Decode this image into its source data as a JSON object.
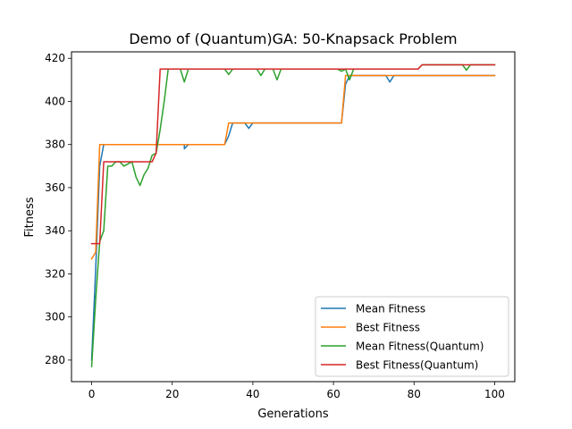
{
  "chart_data": {
    "type": "line",
    "title": "Demo of (Quantum)GA: 50-Knapsack Problem",
    "xlabel": "Generations",
    "ylabel": "Fitness",
    "xlim": [
      -5,
      105
    ],
    "ylim": [
      270,
      423
    ],
    "xticks": [
      0,
      20,
      40,
      60,
      80,
      100
    ],
    "yticks": [
      280,
      300,
      320,
      340,
      360,
      380,
      400,
      420
    ],
    "grid": false,
    "legend_position": "lower-right",
    "series": [
      {
        "name": "Mean Fitness",
        "color": "#1f77b4",
        "points": [
          [
            0,
            280
          ],
          [
            1,
            322
          ],
          [
            2,
            370
          ],
          [
            3,
            380
          ],
          [
            23,
            380
          ],
          [
            23,
            378
          ],
          [
            24,
            380
          ],
          [
            33,
            380
          ],
          [
            34,
            384
          ],
          [
            35,
            390
          ],
          [
            38,
            390
          ],
          [
            39,
            387.5
          ],
          [
            40,
            390
          ],
          [
            62,
            390
          ],
          [
            63,
            408
          ],
          [
            64,
            412
          ],
          [
            73,
            412
          ],
          [
            74,
            409
          ],
          [
            75,
            412
          ],
          [
            100,
            412
          ]
        ]
      },
      {
        "name": "Best Fitness",
        "color": "#ff7f0e",
        "points": [
          [
            0,
            327
          ],
          [
            1,
            330
          ],
          [
            2,
            380
          ],
          [
            33,
            380
          ],
          [
            34,
            390
          ],
          [
            62,
            390
          ],
          [
            63,
            412
          ],
          [
            100,
            412
          ]
        ]
      },
      {
        "name": "Mean Fitness(Quantum)",
        "color": "#2ca02c",
        "points": [
          [
            0,
            277
          ],
          [
            1,
            308
          ],
          [
            2,
            335
          ],
          [
            3,
            340
          ],
          [
            4,
            370
          ],
          [
            5,
            370
          ],
          [
            6,
            372
          ],
          [
            7,
            372
          ],
          [
            8,
            370
          ],
          [
            9,
            371
          ],
          [
            10,
            372
          ],
          [
            11,
            365
          ],
          [
            12,
            361
          ],
          [
            13,
            366
          ],
          [
            14,
            369
          ],
          [
            15,
            375
          ],
          [
            16,
            376
          ],
          [
            17,
            387
          ],
          [
            18,
            400
          ],
          [
            19,
            415
          ],
          [
            22,
            415
          ],
          [
            23,
            409
          ],
          [
            24,
            415
          ],
          [
            33,
            415
          ],
          [
            34,
            412.5
          ],
          [
            35,
            415
          ],
          [
            41,
            415
          ],
          [
            42,
            412
          ],
          [
            43,
            415
          ],
          [
            45,
            415
          ],
          [
            46,
            410
          ],
          [
            47,
            415
          ],
          [
            61,
            415
          ],
          [
            62,
            414
          ],
          [
            63,
            415
          ],
          [
            64,
            410
          ],
          [
            65,
            415
          ],
          [
            81,
            415
          ],
          [
            82,
            417
          ],
          [
            92,
            417
          ],
          [
            93,
            414.5
          ],
          [
            94,
            417
          ],
          [
            100,
            417
          ]
        ]
      },
      {
        "name": "Best Fitness(Quantum)",
        "color": "#d62728",
        "points": [
          [
            0,
            334
          ],
          [
            2,
            334
          ],
          [
            3,
            372
          ],
          [
            15,
            372
          ],
          [
            16,
            376
          ],
          [
            17,
            415
          ],
          [
            81,
            415
          ],
          [
            82,
            417
          ],
          [
            100,
            417
          ]
        ]
      }
    ]
  }
}
